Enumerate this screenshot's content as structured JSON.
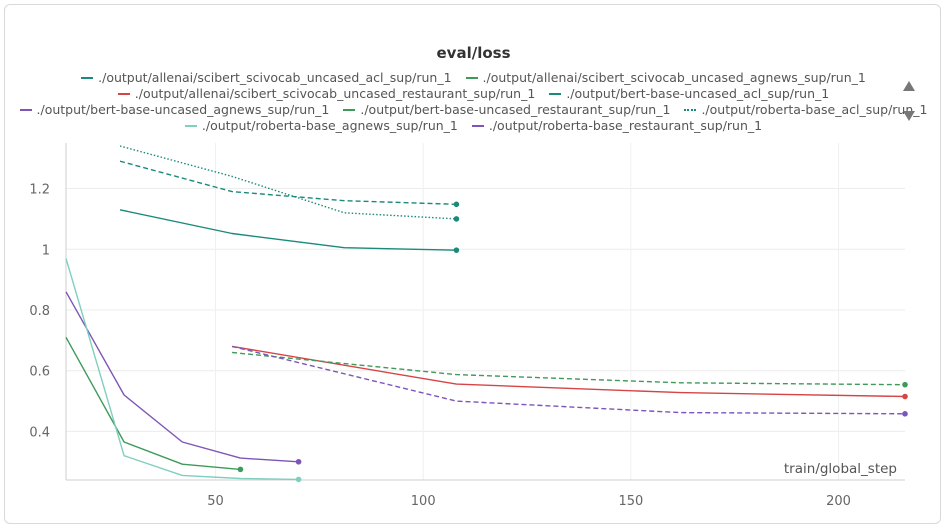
{
  "chart_data": {
    "type": "line",
    "title": "eval/loss",
    "xlabel": "train/global_step",
    "ylabel": "",
    "xlim": [
      14,
      216
    ],
    "ylim": [
      0.24,
      1.35
    ],
    "x_ticks": [
      50,
      100,
      150,
      200
    ],
    "y_ticks": [
      0.4,
      0.6,
      0.8,
      1,
      1.2
    ],
    "x_tick_labels": [
      "50",
      "100",
      "150",
      "200"
    ],
    "y_tick_labels": [
      "0.4",
      "0.6",
      "0.8",
      "1",
      "1.2"
    ],
    "grid": true,
    "legend_position": "top",
    "series": [
      {
        "name": "./output/allenai/scibert_scivocab_uncased_acl_sup/run_1",
        "color": "#1a8a7a",
        "style": "solid",
        "x": [
          27,
          54,
          81,
          108
        ],
        "y": [
          1.13,
          1.052,
          1.005,
          0.997
        ]
      },
      {
        "name": "./output/allenai/scibert_scivocab_uncased_agnews_sup/run_1",
        "color": "#3f9a5a",
        "style": "solid",
        "x": [
          14,
          28,
          42,
          56
        ],
        "y": [
          0.71,
          0.365,
          0.292,
          0.275
        ]
      },
      {
        "name": "./output/allenai/scibert_scivocab_uncased_restaurant_sup/run_1",
        "color": "#d64545",
        "style": "solid",
        "x": [
          54,
          108,
          162,
          216
        ],
        "y": [
          0.68,
          0.556,
          0.528,
          0.515
        ]
      },
      {
        "name": "./output/bert-base-uncased_acl_sup/run_1",
        "color": "#1a8a7a",
        "style": "dashed",
        "x": [
          27,
          54,
          81,
          108
        ],
        "y": [
          1.29,
          1.19,
          1.16,
          1.148
        ]
      },
      {
        "name": "./output/bert-base-uncased_agnews_sup/run_1",
        "color": "#7d55b8",
        "style": "solid",
        "x": [
          14,
          28,
          42,
          56,
          70
        ],
        "y": [
          0.86,
          0.52,
          0.365,
          0.312,
          0.3
        ]
      },
      {
        "name": "./output/bert-base-uncased_restaurant_sup/run_1",
        "color": "#3f9a5a",
        "style": "dashed",
        "x": [
          54,
          108,
          162,
          216
        ],
        "y": [
          0.66,
          0.587,
          0.56,
          0.554
        ]
      },
      {
        "name": "./output/roberta-base_acl_sup/run_1",
        "color": "#1a8a7a",
        "style": "dotted",
        "x": [
          27,
          54,
          81,
          108
        ],
        "y": [
          1.34,
          1.24,
          1.12,
          1.1
        ]
      },
      {
        "name": "./output/roberta-base_agnews_sup/run_1",
        "color": "#7fcfbf",
        "style": "solid",
        "x": [
          14,
          28,
          42,
          56,
          70
        ],
        "y": [
          0.97,
          0.32,
          0.255,
          0.245,
          0.242
        ]
      },
      {
        "name": "./output/roberta-base_restaurant_sup/run_1",
        "color": "#7d55b8",
        "style": "dashed",
        "x": [
          54,
          108,
          162,
          216
        ],
        "y": [
          0.68,
          0.5,
          0.462,
          0.458
        ]
      }
    ]
  },
  "legend_rows": [
    [
      0,
      1
    ],
    [
      2,
      3
    ],
    [
      4,
      5,
      6
    ],
    [
      7,
      8
    ]
  ],
  "controls": {
    "scroll_up_icon": "triangle-up-icon",
    "scroll_down_icon": "triangle-down-icon"
  }
}
